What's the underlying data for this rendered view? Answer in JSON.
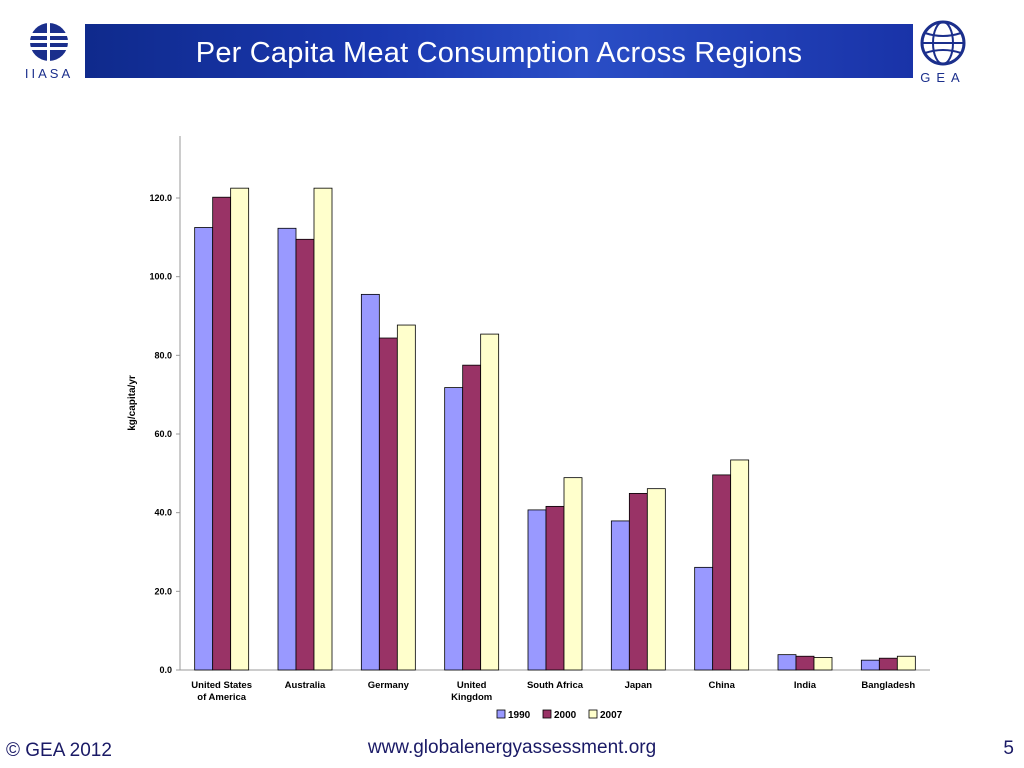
{
  "slide": {
    "title": "Per Capita Meat Consumption Across Regions",
    "left_logo_text": "IIASA",
    "right_logo_text": "GEA",
    "footer_copyright": "© GEA 2012",
    "footer_url": "www.globalenergyassessment.org",
    "page_number": "5",
    "colors": {
      "title_bar": "#1a38b0",
      "footer_text": "#1a1a66"
    }
  },
  "chart_data": {
    "type": "bar",
    "ylabel": "kg/capita/yr",
    "ylim": [
      0,
      130
    ],
    "yticks": [
      "0.0",
      "20.0",
      "40.0",
      "60.0",
      "80.0",
      "100.0",
      "120.0"
    ],
    "ytick_values": [
      0,
      20,
      40,
      60,
      80,
      100,
      120
    ],
    "grid": false,
    "legend_position": "bottom",
    "categories": [
      [
        "United States",
        "of America"
      ],
      [
        "Australia"
      ],
      [
        "Germany"
      ],
      [
        "United",
        "Kingdom"
      ],
      [
        "South Africa"
      ],
      [
        "Japan"
      ],
      [
        "China"
      ],
      [
        "India"
      ],
      [
        "Bangladesh"
      ]
    ],
    "series": [
      {
        "name": "1990",
        "color": "#9999ff",
        "values": [
          112.5,
          112.3,
          95.5,
          71.8,
          40.7,
          37.9,
          26.1,
          3.9,
          2.5
        ]
      },
      {
        "name": "2000",
        "color": "#993366",
        "values": [
          120.2,
          109.5,
          84.4,
          77.5,
          41.6,
          44.9,
          49.6,
          3.5,
          3.0
        ]
      },
      {
        "name": "2007",
        "color": "#ffffcc",
        "values": [
          122.5,
          122.5,
          87.7,
          85.4,
          48.9,
          46.1,
          53.4,
          3.2,
          3.5
        ]
      }
    ]
  }
}
